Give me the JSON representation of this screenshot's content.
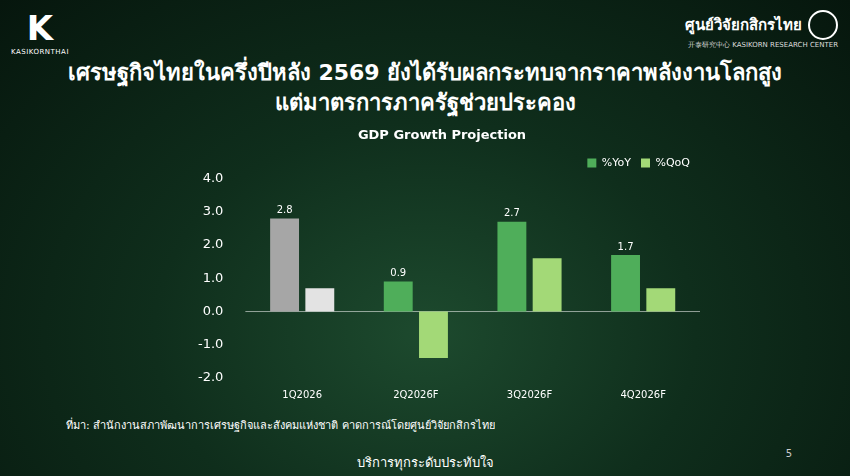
{
  "slide": {
    "logo_left": "KASIKORNTHAI",
    "logo_right": "ศูนย์วิจัยกสิกรไทย",
    "logo_right_sub": "开泰研究中心 KASIKORN RESEARCH CENTER",
    "title": [
      "เศรษฐกิจไทยในครึ่งปีหลัง 2569 ยังได้รับผลกระทบจากราคาพลังงานโลกสูง",
      "แต่มาตรการภาครัฐช่วยประคอง"
    ],
    "source": "ที่มา: สำนักงานสภาพัฒนาการเศรษฐกิจและสังคมแห่งชาติ  คาดการณ์โดยศูนย์วิจัยกสิกรไทย",
    "footer": "บริการทุกระดับประทับใจ",
    "page": "5"
  },
  "chart_data": {
    "type": "bar",
    "title": "GDP Growth Projection",
    "categories": [
      "1Q2026",
      "2Q2026F",
      "3Q2026F",
      "4Q2026F"
    ],
    "series": [
      {
        "name": "%YoY",
        "color": "#4fae5a",
        "colors": [
          "#a6a6a6",
          "#4fae5a",
          "#4fae5a",
          "#4fae5a"
        ],
        "values": [
          2.8,
          0.9,
          2.7,
          1.7
        ],
        "data_labels": true
      },
      {
        "name": "%QoQ",
        "color": "#a3d977",
        "colors": [
          "#e3e3e3",
          "#a3d977",
          "#a3d977",
          "#a3d977"
        ],
        "values": [
          0.7,
          -1.4,
          1.6,
          0.7
        ],
        "data_labels": false
      }
    ],
    "ylim": [
      -2,
      4
    ],
    "yticks": [
      {
        "value": -2,
        "label": "-2.0"
      },
      {
        "value": -1,
        "label": "-1.0"
      },
      {
        "value": 0,
        "label": "0.0"
      },
      {
        "value": 1,
        "label": "1.0"
      },
      {
        "value": 2,
        "label": "2.0"
      },
      {
        "value": 3,
        "label": "3.0"
      },
      {
        "value": 4,
        "label": "4.0"
      }
    ],
    "grid": false,
    "legend": "top-right"
  }
}
